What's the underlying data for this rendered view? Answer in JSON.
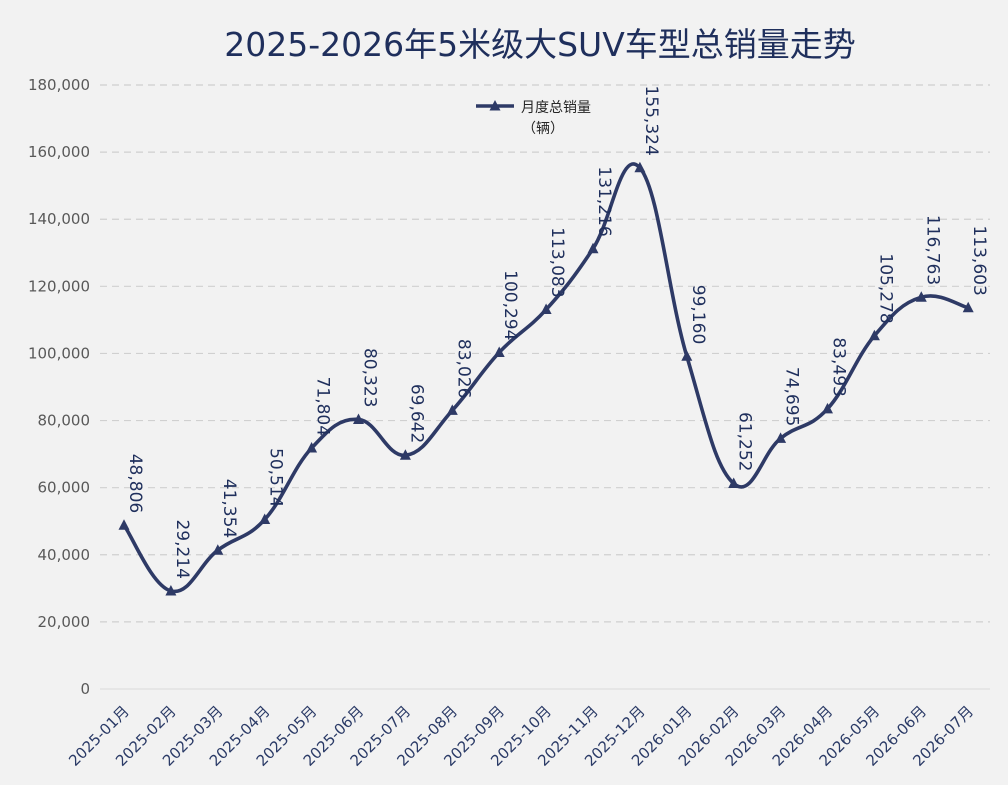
{
  "chart_data": {
    "type": "line",
    "title": "2025-2026年5米级大SUV车型总销量走势",
    "categories": [
      "2025-01月",
      "2025-02月",
      "2025-03月",
      "2025-04月",
      "2025-05月",
      "2025-06月",
      "2025-07月",
      "2025-08月",
      "2025-09月",
      "2025-10月",
      "2025-11月",
      "2025-12月",
      "2026-01月",
      "2026-02月",
      "2026-03月",
      "2026-04月",
      "2026-05月",
      "2026-06月",
      "2026-07月"
    ],
    "series": [
      {
        "name": "月度总销量（辆）",
        "values": [
          48806,
          29214,
          41354,
          50514,
          71804,
          80323,
          69642,
          83026,
          100294,
          113083,
          131216,
          155324,
          99160,
          61252,
          74695,
          83493,
          105278,
          116763,
          113603
        ]
      }
    ],
    "data_labels": [
      "48,806",
      "29,214",
      "41,354",
      "50,514",
      "71,804",
      "80,323",
      "69,642",
      "83,026",
      "100,294",
      "113,083",
      "131,216",
      "155,324",
      "99,160",
      "61,252",
      "74,695",
      "83,493",
      "105,278",
      "116,763",
      "113,603"
    ],
    "yticks": [
      "0",
      "20,000",
      "40,000",
      "60,000",
      "80,000",
      "100,000",
      "120,000",
      "140,000",
      "160,000",
      "180,000"
    ],
    "ylim": [
      0,
      180000
    ],
    "grid": "horizontal dashed",
    "legend_position": "top-center",
    "legend": {
      "line1": "月度总销量",
      "line2": "（辆）"
    },
    "colors": {
      "line": "#2e3a66",
      "grid": "#d0d0d0",
      "background": "#f2f2f2"
    }
  }
}
